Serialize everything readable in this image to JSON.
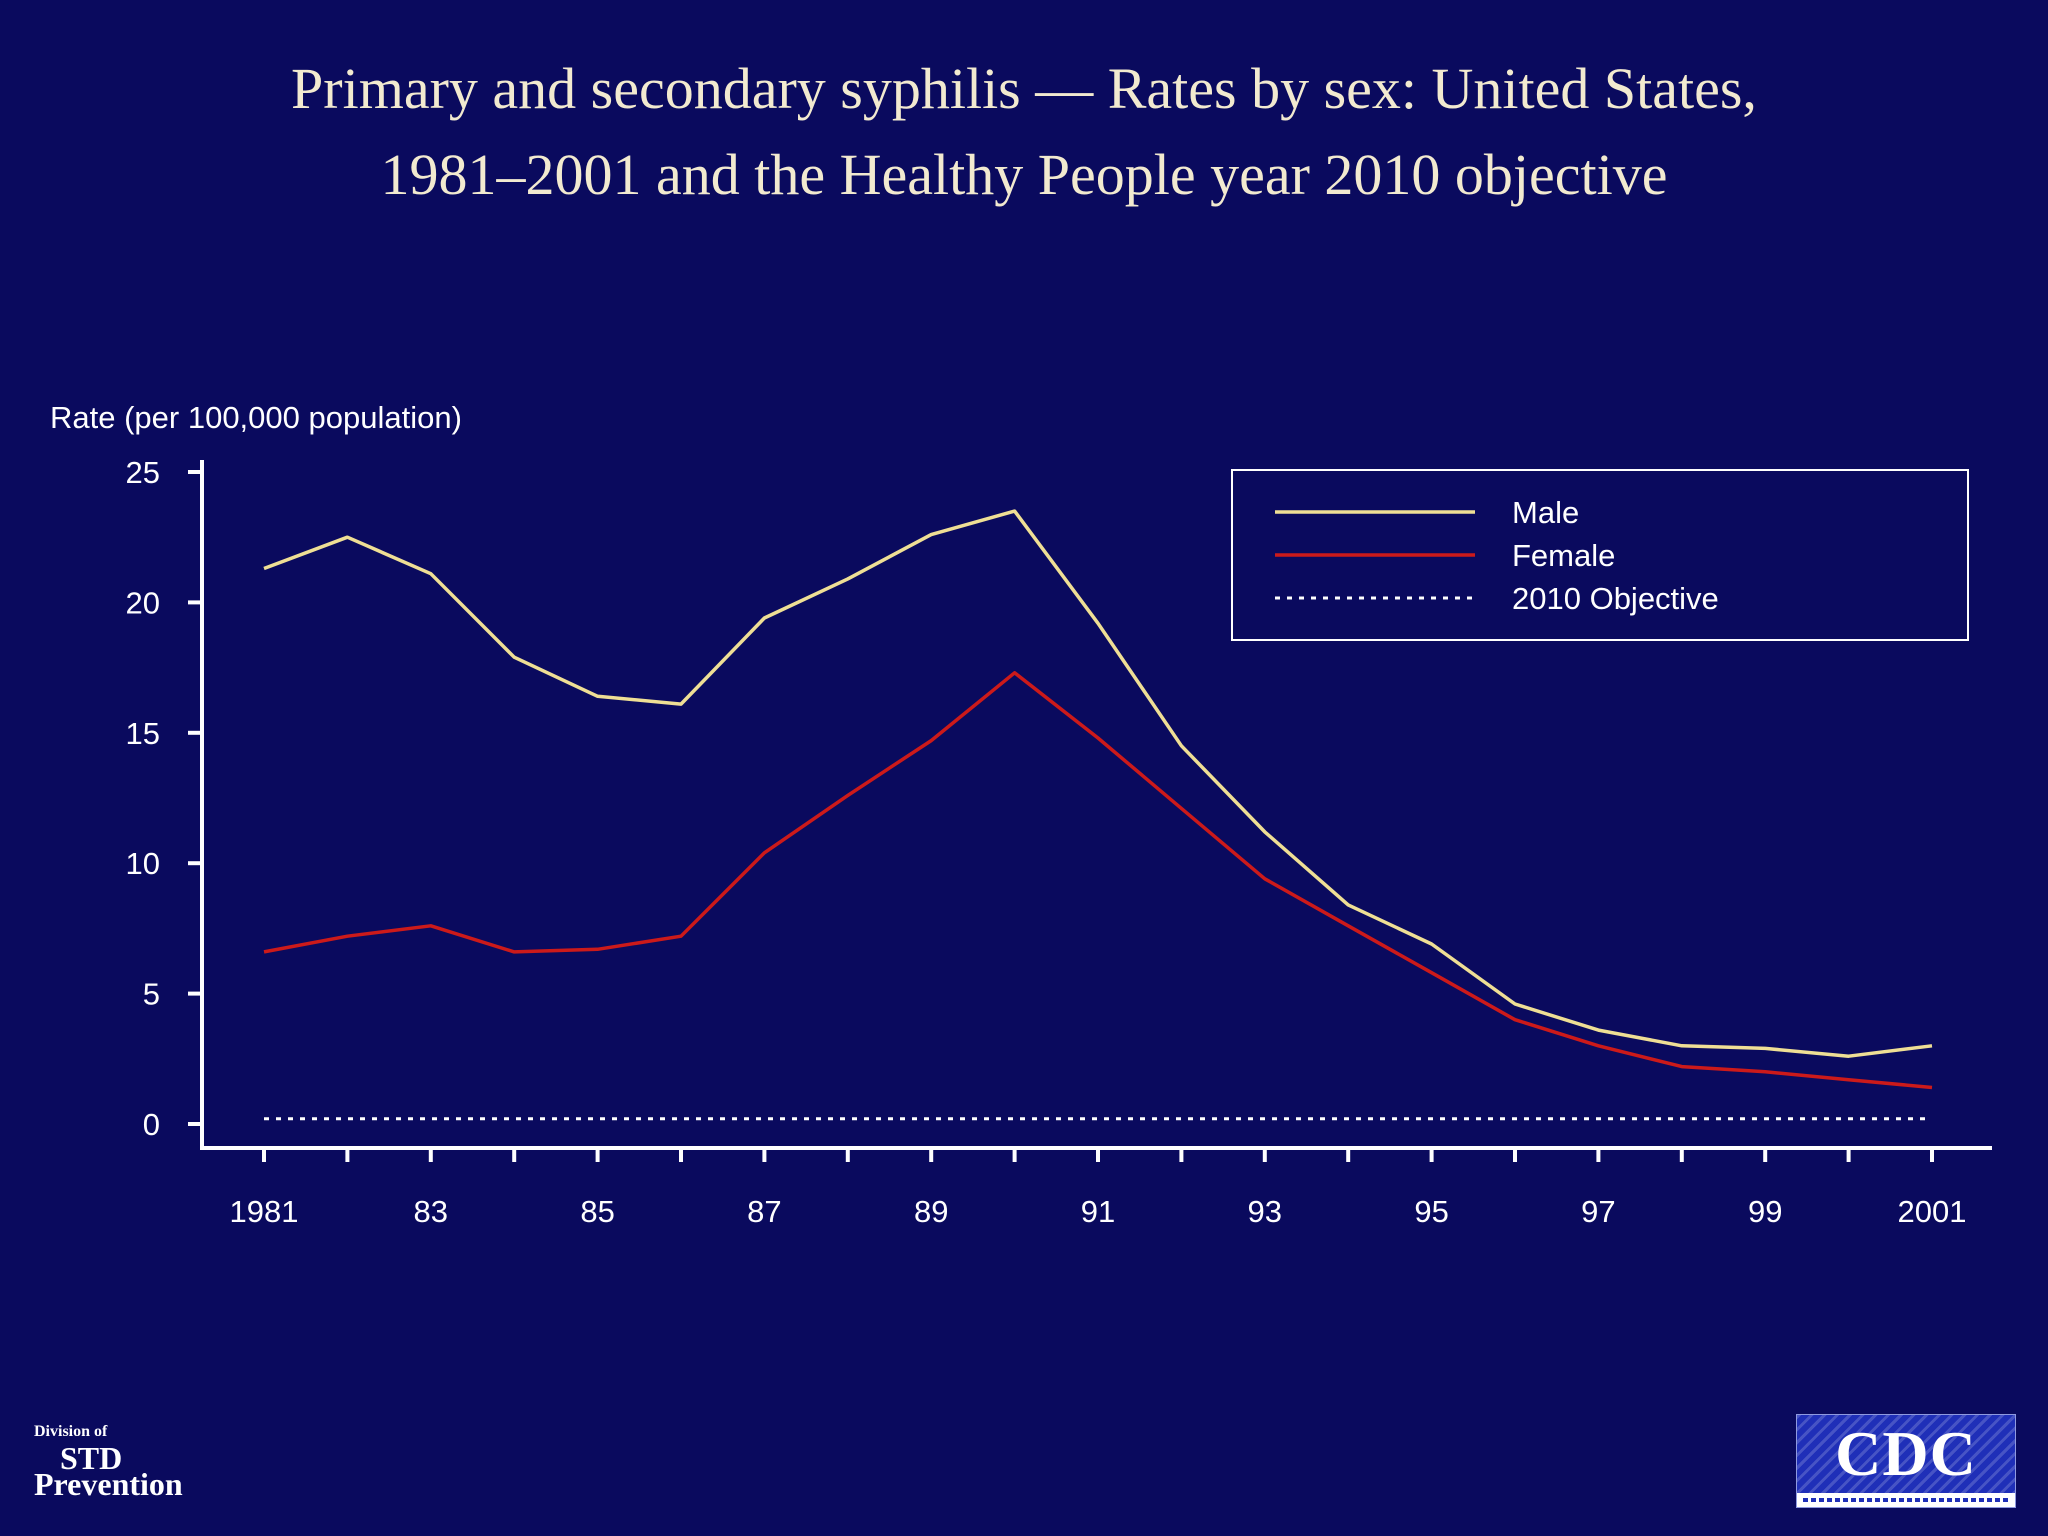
{
  "title": {
    "line1": "Primary and secondary syphilis — Rates by sex: United States,",
    "line2": "1981–2001 and the Healthy People year 2010 objective"
  },
  "footer": {
    "org_line1": "Division of",
    "org_line2": "STD",
    "org_line3": "Prevention",
    "logo_text": "CDC"
  },
  "colors": {
    "background": "#0a0a5e",
    "axis": "#ffffff",
    "male": "#efdf95",
    "female": "#cc1a1a",
    "objective": "#ffffff",
    "title": "#f2ead0"
  },
  "chart_data": {
    "type": "line",
    "ylabel": "Rate (per 100,000 population)",
    "xlabel": "",
    "ylim": [
      0,
      25
    ],
    "yticks": [
      0,
      5,
      10,
      15,
      20,
      25
    ],
    "x": [
      1981,
      1982,
      1983,
      1984,
      1985,
      1986,
      1987,
      1988,
      1989,
      1990,
      1991,
      1992,
      1993,
      1994,
      1995,
      1996,
      1997,
      1998,
      1999,
      2000,
      2001
    ],
    "xtick_labels": [
      "1981",
      "83",
      "85",
      "87",
      "89",
      "91",
      "93",
      "95",
      "97",
      "99",
      "2001"
    ],
    "xtick_label_years": [
      1981,
      1983,
      1985,
      1987,
      1989,
      1991,
      1993,
      1995,
      1997,
      1999,
      2001
    ],
    "grid": false,
    "legend_position": "top-right",
    "series": [
      {
        "name": "Male",
        "style": "solid",
        "values": [
          21.3,
          22.5,
          21.1,
          17.9,
          16.4,
          16.1,
          19.4,
          20.9,
          22.6,
          23.5,
          19.2,
          14.5,
          11.2,
          8.4,
          6.9,
          4.6,
          3.6,
          3.0,
          2.9,
          2.6,
          3.0
        ]
      },
      {
        "name": "Female",
        "style": "solid",
        "values": [
          6.6,
          7.2,
          7.6,
          6.6,
          6.7,
          7.2,
          10.4,
          12.6,
          14.7,
          17.3,
          14.8,
          12.1,
          9.4,
          7.6,
          5.8,
          4.0,
          3.0,
          2.2,
          2.0,
          1.7,
          1.4
        ]
      },
      {
        "name": "2010 Objective",
        "style": "dotted",
        "values": [
          0.2,
          0.2,
          0.2,
          0.2,
          0.2,
          0.2,
          0.2,
          0.2,
          0.2,
          0.2,
          0.2,
          0.2,
          0.2,
          0.2,
          0.2,
          0.2,
          0.2,
          0.2,
          0.2,
          0.2,
          0.2
        ]
      }
    ]
  }
}
